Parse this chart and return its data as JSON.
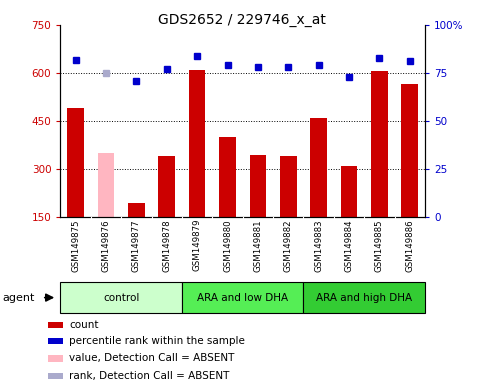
{
  "title": "GDS2652 / 229746_x_at",
  "samples": [
    "GSM149875",
    "GSM149876",
    "GSM149877",
    "GSM149878",
    "GSM149879",
    "GSM149880",
    "GSM149881",
    "GSM149882",
    "GSM149883",
    "GSM149884",
    "GSM149885",
    "GSM149886"
  ],
  "bar_values": [
    490,
    350,
    195,
    340,
    610,
    400,
    345,
    340,
    460,
    310,
    605,
    565
  ],
  "bar_absent": [
    false,
    true,
    false,
    false,
    false,
    false,
    false,
    false,
    false,
    false,
    false,
    false
  ],
  "percentile_values": [
    82,
    75,
    71,
    77,
    84,
    79,
    78,
    78,
    79,
    73,
    83,
    81
  ],
  "percentile_absent": [
    false,
    true,
    false,
    false,
    false,
    false,
    false,
    false,
    false,
    false,
    false,
    false
  ],
  "bar_color": "#cc0000",
  "bar_absent_color": "#ffb6c1",
  "dot_color": "#0000cc",
  "dot_absent_color": "#aaaacc",
  "ylim_left": [
    150,
    750
  ],
  "ylim_right": [
    0,
    100
  ],
  "yticks_left": [
    150,
    300,
    450,
    600,
    750
  ],
  "yticks_right": [
    0,
    25,
    50,
    75,
    100
  ],
  "ytick_labels_right": [
    "0",
    "25",
    "50",
    "75",
    "100%"
  ],
  "groups": [
    {
      "label": "control",
      "start": 0,
      "end": 3,
      "color": "#ccffcc"
    },
    {
      "label": "ARA and low DHA",
      "start": 4,
      "end": 7,
      "color": "#55ee55"
    },
    {
      "label": "ARA and high DHA",
      "start": 8,
      "end": 11,
      "color": "#33cc33"
    }
  ],
  "legend_items": [
    {
      "color": "#cc0000",
      "label": "count"
    },
    {
      "color": "#0000cc",
      "label": "percentile rank within the sample"
    },
    {
      "color": "#ffb6c1",
      "label": "value, Detection Call = ABSENT"
    },
    {
      "color": "#aaaacc",
      "label": "rank, Detection Call = ABSENT"
    }
  ],
  "bar_width": 0.55
}
